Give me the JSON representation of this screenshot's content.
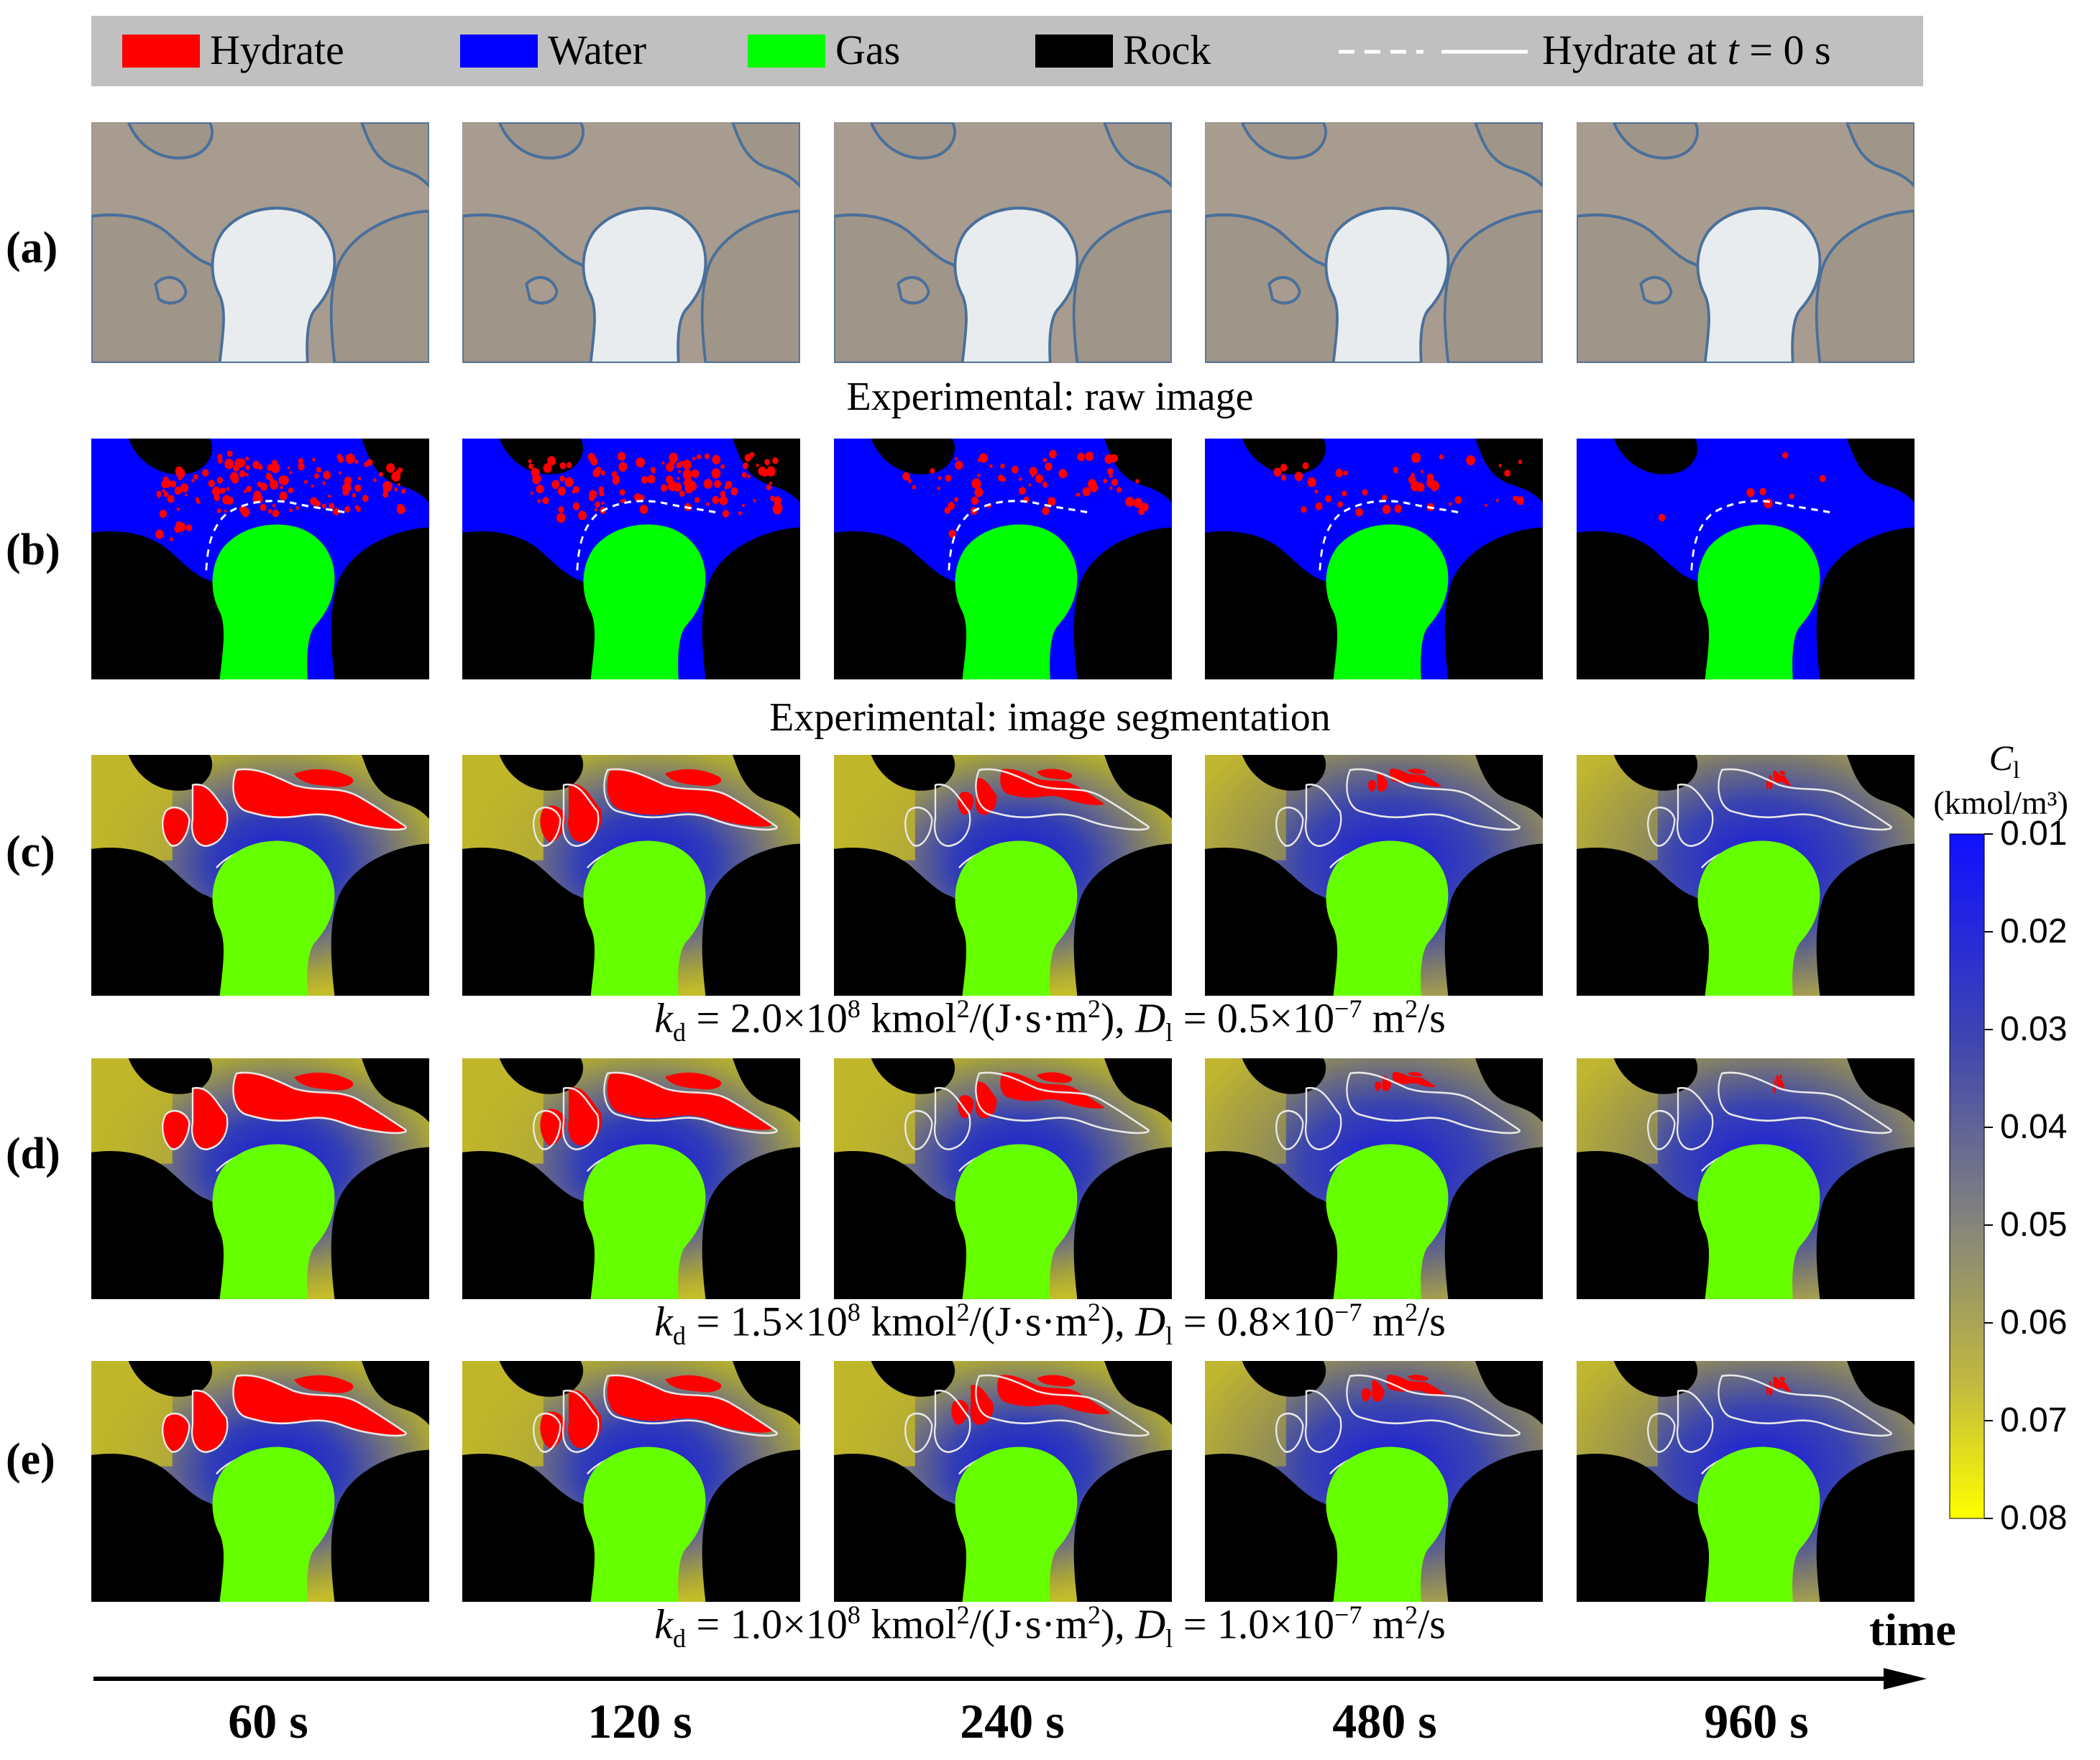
{
  "legend": {
    "items": [
      "Hydrate",
      "Water",
      "Gas",
      "Rock"
    ],
    "colors": [
      "#ff0000",
      "#0000ff",
      "#00ff00",
      "#000000"
    ],
    "t0_label_pre": "Hydrate at ",
    "t0_label_var": "t",
    "t0_label_post": " = 0 s"
  },
  "rows": [
    {
      "label": "(a)"
    },
    {
      "label": "(b)"
    },
    {
      "label": "(c)"
    },
    {
      "label": "(d)"
    },
    {
      "label": "(e)"
    }
  ],
  "captions": {
    "a": "Experimental: raw image",
    "b": "Experimental: image segmentation",
    "c": {
      "kd": "2.0×10",
      "kd_exp": "8",
      "D": "0.5×10",
      "D_exp": "−7"
    },
    "d": {
      "kd": "1.5×10",
      "kd_exp": "8",
      "D": "0.8×10",
      "D_exp": "−7"
    },
    "e": {
      "kd": "1.0×10",
      "kd_exp": "8",
      "D": "1.0×10",
      "D_exp": "−7"
    }
  },
  "times": [
    "60 s",
    "120 s",
    "240 s",
    "480 s",
    "960 s"
  ],
  "time_axis_label": "time",
  "colorbar": {
    "symbol": "C",
    "subscript": "l",
    "units": "(kmol/m³)",
    "ticks": [
      "0.01",
      "0.02",
      "0.03",
      "0.04",
      "0.05",
      "0.06",
      "0.07",
      "0.08"
    ],
    "color_low": "#1010ff",
    "color_mid": "#808080",
    "color_high": "#ffff00"
  },
  "hydrate_remaining_fraction": {
    "b": [
      1.0,
      0.8,
      0.45,
      0.3,
      0.05
    ],
    "c": [
      1.0,
      0.95,
      0.6,
      0.3,
      0.1
    ],
    "d": [
      1.0,
      0.95,
      0.6,
      0.25,
      0.05
    ],
    "e": [
      1.0,
      0.95,
      0.65,
      0.35,
      0.1
    ]
  }
}
